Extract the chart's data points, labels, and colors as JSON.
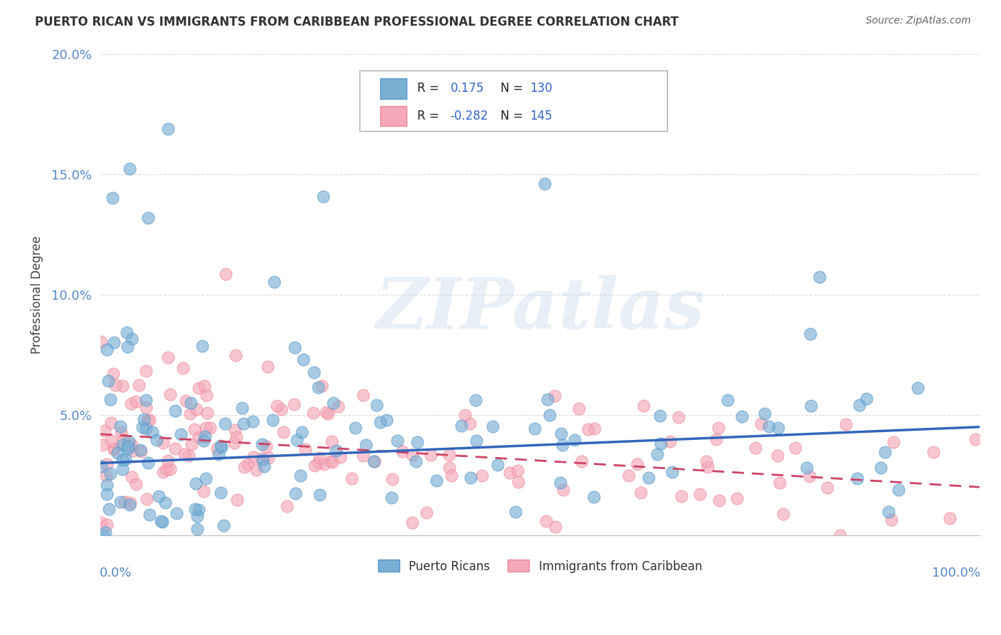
{
  "title": "PUERTO RICAN VS IMMIGRANTS FROM CARIBBEAN PROFESSIONAL DEGREE CORRELATION CHART",
  "source": "Source: ZipAtlas.com",
  "ylabel": "Professional Degree",
  "xlim": [
    0,
    100
  ],
  "ylim": [
    0,
    20
  ],
  "ytick_vals": [
    0,
    5,
    10,
    15,
    20
  ],
  "ytick_labels": [
    "",
    "5.0%",
    "10.0%",
    "15.0%",
    "20.0%"
  ],
  "grid_color": "#cccccc",
  "background_color": "#ffffff",
  "blue_color": "#7aafd4",
  "blue_edge": "#5599cc",
  "pink_color": "#f4a8b8",
  "pink_edge": "#ee8899",
  "blue_line_color": "#3366bb",
  "pink_line_color": "#cc4466",
  "legend_label1": "Puerto Ricans",
  "legend_label2": "Immigrants from Caribbean",
  "watermark": "ZIPatlas",
  "title_color": "#333333",
  "source_color": "#666666",
  "axis_tick_color": "#5588cc",
  "blue_R": 0.175,
  "blue_N": 130,
  "pink_R": -0.282,
  "pink_N": 145,
  "blue_intercept": 3.0,
  "blue_slope": 0.015,
  "pink_intercept": 4.2,
  "pink_slope": -0.022
}
